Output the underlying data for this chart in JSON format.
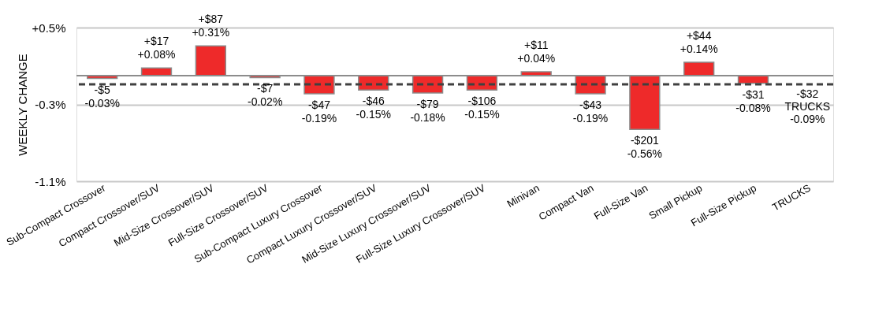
{
  "chart_data": {
    "type": "bar",
    "ylabel": "WEEKLY CHANGE",
    "categories": [
      "Sub-Compact Crossover",
      "Compact Crossover/SUV",
      "Mid-Size Crossover/SUV",
      "Full-Size Crossover/SUV",
      "Sub-Compact Luxury Crossover",
      "Compact Luxury Crossover/SUV",
      "Mid-Size Luxury Crossover/SUV",
      "Full-Size Luxury Crossover/SUV",
      "Minivan",
      "Compact Van",
      "Full-Size Van",
      "Small Pickup",
      "Full-Size Pickup",
      "TRUCKS"
    ],
    "values": [
      -0.03,
      0.08,
      0.31,
      -0.02,
      -0.19,
      -0.15,
      -0.18,
      -0.15,
      0.04,
      -0.19,
      -0.56,
      0.14,
      -0.08,
      null
    ],
    "value_labels": [
      "-$5\n-0.03%",
      "+$17\n+0.08%",
      "+$87\n+0.31%",
      "-$7\n-0.02%",
      "-$47\n-0.19%",
      "-$46\n-0.15%",
      "-$79\n-0.18%",
      "-$106\n-0.15%",
      "+$11\n+0.04%",
      "-$43\n-0.19%",
      "-$201\n-0.56%",
      "+$44\n+0.14%",
      "-$31\n-0.08%",
      null
    ],
    "color": "#ee2a2a",
    "ylim": [
      -1.1,
      0.5
    ],
    "yticks": [
      {
        "value": 0.5,
        "label": "+0.5%"
      },
      {
        "value": -0.3,
        "label": "-0.3%"
      },
      {
        "value": -1.1,
        "label": "-1.1%"
      }
    ],
    "grid": "y",
    "ref_lines": [
      {
        "axis": "y",
        "value": -0.09,
        "label": "-$32\nTRUCKS\n-0.09%",
        "line_style": "dashed",
        "color": "#404040"
      }
    ]
  }
}
